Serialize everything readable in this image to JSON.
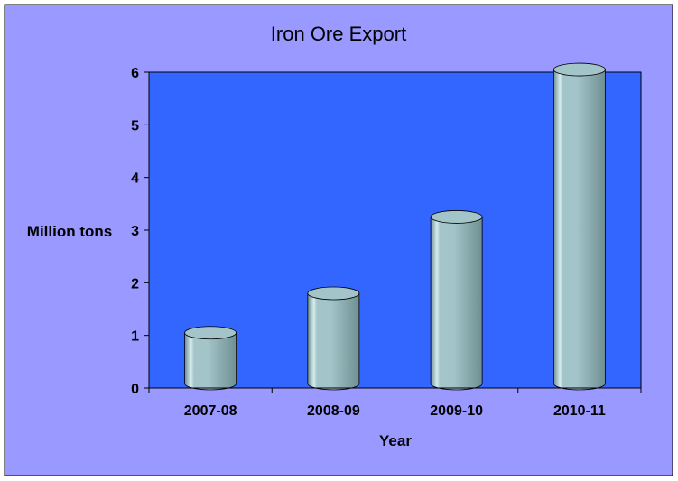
{
  "chart_data": {
    "type": "bar",
    "title": "Iron Ore Export",
    "xlabel": "Year",
    "ylabel": "Million tons",
    "categories": [
      "2007-08",
      "2008-09",
      "2009-10",
      "2010-11"
    ],
    "values": [
      1.05,
      1.8,
      3.25,
      6.05
    ],
    "ylim": [
      0,
      6
    ],
    "yticks": [
      "0",
      "1",
      "2",
      "3",
      "4",
      "5",
      "6"
    ],
    "grid": false,
    "legend": "none",
    "bar_shape": "cylinder",
    "colors": {
      "outer_background": "#9999ff",
      "plot_background": "#3366ff",
      "bar_fill": "#a3c4c8",
      "bar_dark": "#6f8f93",
      "bar_highlight": "#d6ecee",
      "axis": "#000000"
    }
  }
}
